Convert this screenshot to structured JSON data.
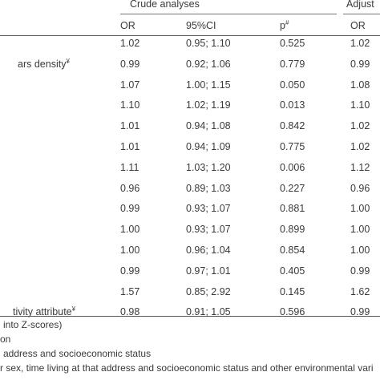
{
  "header": {
    "crude_group": "Crude analyses",
    "adjusted_group": "Adjust",
    "or_label": "OR",
    "ci_label": "95%CI",
    "p_label": "p",
    "p_sup": "#",
    "adj_or_label": "OR"
  },
  "row_labels": [
    {
      "text": "",
      "sup": ""
    },
    {
      "text": "ars density",
      "sup": "¥"
    },
    {
      "text": "",
      "sup": ""
    },
    {
      "text": "",
      "sup": ""
    },
    {
      "text": "",
      "sup": ""
    },
    {
      "text": "",
      "sup": ""
    },
    {
      "text": "",
      "sup": ""
    },
    {
      "text": "",
      "sup": ""
    },
    {
      "text": "",
      "sup": ""
    },
    {
      "text": "",
      "sup": ""
    },
    {
      "text": "",
      "sup": ""
    },
    {
      "text": "",
      "sup": ""
    },
    {
      "text": "",
      "sup": ""
    },
    {
      "text": "tivity attribute",
      "sup": "¥"
    }
  ],
  "rows": [
    {
      "or": "1.02",
      "ci": "0.95; 1.10",
      "p": "0.525",
      "adj_or": "1.02"
    },
    {
      "or": "0.99",
      "ci": "0.92; 1.06",
      "p": "0.779",
      "adj_or": "0.99"
    },
    {
      "or": "1.07",
      "ci": "1.00; 1.15",
      "p": "0.050",
      "adj_or": "1.08"
    },
    {
      "or": "1.10",
      "ci": "1.02; 1.19",
      "p": "0.013",
      "adj_or": "1.10"
    },
    {
      "or": "1.01",
      "ci": "0.94; 1.08",
      "p": "0.842",
      "adj_or": "1.02"
    },
    {
      "or": "1.01",
      "ci": "0.94; 1.09",
      "p": "0.775",
      "adj_or": "1.02"
    },
    {
      "or": "1.11",
      "ci": "1.03; 1.20",
      "p": "0.006",
      "adj_or": "1.12"
    },
    {
      "or": "0.96",
      "ci": "0.89; 1.03",
      "p": "0.227",
      "adj_or": "0.96"
    },
    {
      "or": "0.99",
      "ci": "0.93; 1.07",
      "p": "0.881",
      "adj_or": "1.00"
    },
    {
      "or": "1.00",
      "ci": "0.93; 1.07",
      "p": "0.899",
      "adj_or": "1.00"
    },
    {
      "or": "1.00",
      "ci": "0.96; 1.04",
      "p": "0.854",
      "adj_or": "1.00"
    },
    {
      "or": "0.99",
      "ci": "0.97; 1.01",
      "p": "0.405",
      "adj_or": "0.99"
    },
    {
      "or": "1.57",
      "ci": "0.85; 2.92",
      "p": "0.145",
      "adj_or": "1.62"
    },
    {
      "or": "0.98",
      "ci": "0.91; 1.05",
      "p": "0.596",
      "adj_or": "0.99"
    }
  ],
  "footnotes": [
    "into Z-scores)",
    "on",
    "address and socioeconomic status",
    "r sex, time living at that address and socioeconomic status and other environmental vari"
  ]
}
